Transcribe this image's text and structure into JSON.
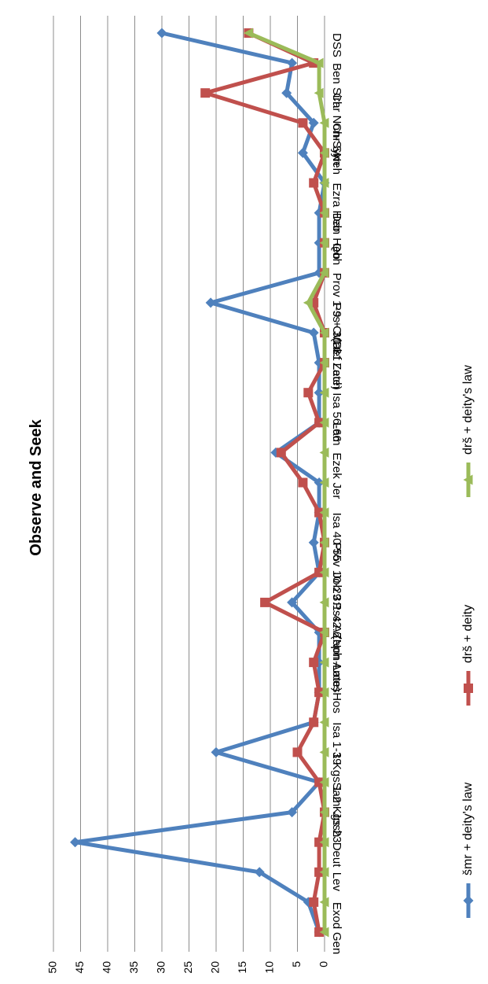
{
  "chart_data": {
    "type": "line",
    "title": "Observe and Seek",
    "ylim": [
      0,
      50
    ],
    "yticks": [
      0,
      5,
      10,
      15,
      20,
      25,
      30,
      35,
      40,
      45,
      50
    ],
    "grid": true,
    "legend_position": "bottom",
    "categories": [
      "Gen",
      "Exod",
      "Lev",
      "Deut",
      "Josh",
      "Sam",
      "1 Kgs 1-2 Kgs 23",
      "Isa 1-39",
      "Hos",
      "Amos",
      "Zeph",
      "Pss A (Non-Late)",
      "Job 3:1-42:6",
      "Prov 10-29",
      "Isa 40-55",
      "Jer",
      "Ezek",
      "Lam",
      "Isa 56-66",
      "Zech",
      "Mal",
      "Pss C (Def Late)",
      "Prov 1-9 + 30-31",
      "Qoh",
      "Dan Heb",
      "Ezra Heb",
      "Neh",
      "Chr Syn",
      "Chr Non-Syn",
      "Ben Sira",
      "DSS"
    ],
    "series": [
      {
        "name": "šmr + deity's law",
        "color": "#4f81bd",
        "marker": "diamond",
        "values": [
          1,
          3,
          12,
          46,
          6,
          1,
          20,
          2,
          1,
          1,
          1,
          6,
          1,
          2,
          1,
          1,
          9,
          1,
          1,
          1,
          2,
          21,
          1,
          1,
          1,
          0,
          4,
          2,
          7,
          6,
          30
        ]
      },
      {
        "name": "drš + deity",
        "color": "#c0504d",
        "marker": "square",
        "values": [
          1,
          2,
          1,
          1,
          0,
          1,
          5,
          2,
          1,
          2,
          0,
          11,
          1,
          0,
          1,
          4,
          8,
          1,
          3,
          0,
          0,
          2,
          0,
          0,
          0,
          2,
          0,
          4,
          22,
          2,
          14
        ]
      },
      {
        "name": "drš + deity's law",
        "color": "#9bbb59",
        "marker": "triangle",
        "values": [
          0,
          0,
          0,
          0,
          0,
          0,
          0,
          0,
          0,
          0,
          0,
          0,
          0,
          0,
          0,
          0,
          0,
          0,
          0,
          0,
          0,
          3,
          0,
          0,
          0,
          0,
          0,
          0,
          1,
          1,
          14
        ]
      }
    ]
  }
}
